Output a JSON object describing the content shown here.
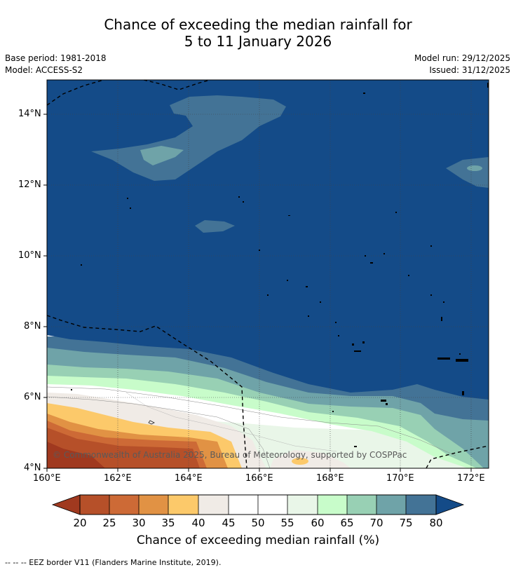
{
  "title": {
    "line1": "Chance of exceeding the median rainfall for",
    "line2": "5 to 11 January 2026"
  },
  "meta": {
    "base_period": "Base period: 1981-2018",
    "model": "Model: ACCESS-S2",
    "model_run": "Model run: 29/12/2025",
    "issued": "Issued: 31/12/2025"
  },
  "map": {
    "lat_labels": [
      "14°N",
      "12°N",
      "10°N",
      "8°N",
      "6°N",
      "4°N"
    ],
    "lon_labels": [
      "160°E",
      "162°E",
      "164°E",
      "166°E",
      "168°E",
      "170°E",
      "172°E"
    ],
    "copyright": "© Commonwealth of Australia 2025, Bureau of Meteorology, supported by COSPPac",
    "colors": {
      "c20": "#a0391f",
      "c25": "#b65029",
      "c30": "#cd6a36",
      "c35": "#e19244",
      "c40": "#fcc96a",
      "c45": "#f0ebe6",
      "c50": "#ffffff",
      "c55": "#ffffff",
      "c60": "#e9f6e8",
      "c65": "#c8fcca",
      "c70": "#98d0b4",
      "c75": "#6fa3a8",
      "c80": "#437396",
      "c85": "#144b88"
    }
  },
  "colorbar": {
    "labels": [
      "20",
      "25",
      "30",
      "35",
      "40",
      "45",
      "50",
      "55",
      "60",
      "65",
      "70",
      "75",
      "80"
    ],
    "title": "Chance of exceeding median rainfall (%)"
  },
  "footnote": "--  --  -- EEZ border V11 (Flanders Marine Institute, 2019)."
}
